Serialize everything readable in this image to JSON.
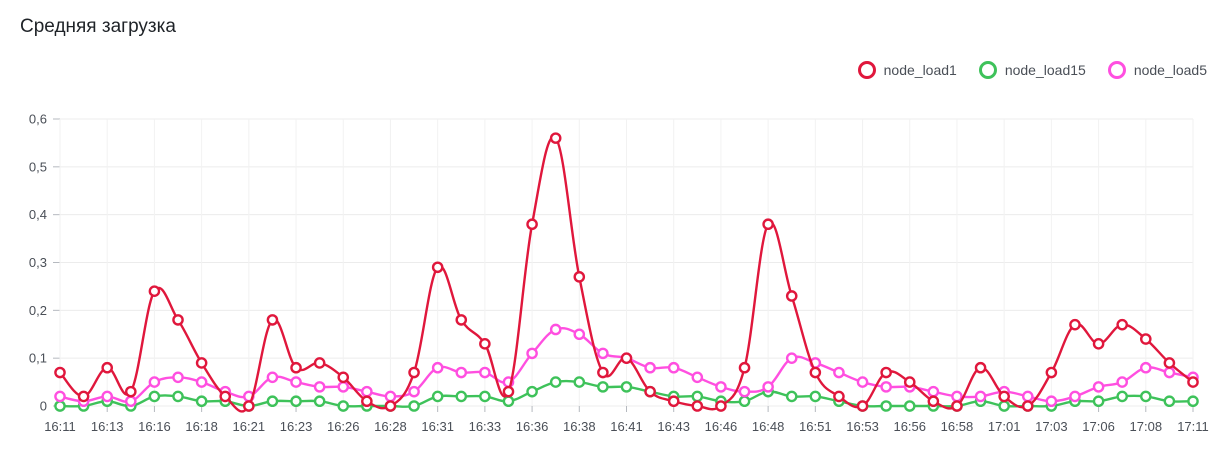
{
  "chart_data": {
    "type": "line",
    "title": "Средняя загрузка",
    "xlabel": "",
    "ylabel": "",
    "ylim": [
      0,
      0.6
    ],
    "yticks": [
      "0",
      "0,1",
      "0,2",
      "0,3",
      "0,4",
      "0,5",
      "0,6"
    ],
    "ytick_values": [
      0,
      0.1,
      0.2,
      0.3,
      0.4,
      0.5,
      0.6
    ],
    "x_tick_labels": [
      "16:11",
      "16:13",
      "16:16",
      "16:18",
      "16:21",
      "16:23",
      "16:26",
      "16:28",
      "16:31",
      "16:33",
      "16:36",
      "16:38",
      "16:41",
      "16:43",
      "16:46",
      "16:48",
      "16:51",
      "16:53",
      "16:56",
      "16:58",
      "17:01",
      "17:03",
      "17:06",
      "17:08",
      "17:11"
    ],
    "point_count": 49,
    "grid": true,
    "legend_position": "top-right",
    "series": [
      {
        "name": "node_load1",
        "color": "#e0173c",
        "values": [
          0.07,
          0.02,
          0.08,
          0.03,
          0.24,
          0.18,
          0.09,
          0.02,
          0.0,
          0.18,
          0.08,
          0.09,
          0.06,
          0.01,
          0.0,
          0.07,
          0.29,
          0.18,
          0.13,
          0.03,
          0.38,
          0.56,
          0.27,
          0.07,
          0.1,
          0.03,
          0.01,
          0.0,
          0.0,
          0.08,
          0.38,
          0.23,
          0.07,
          0.02,
          0.0,
          0.07,
          0.05,
          0.01,
          0.0,
          0.08,
          0.02,
          0.0,
          0.07,
          0.17,
          0.13,
          0.17,
          0.14,
          0.09,
          0.05
        ]
      },
      {
        "name": "node_load15",
        "color": "#3ec25a",
        "values": [
          0.0,
          0.0,
          0.01,
          0.0,
          0.02,
          0.02,
          0.01,
          0.01,
          0.0,
          0.01,
          0.01,
          0.01,
          0.0,
          0.0,
          0.0,
          0.0,
          0.02,
          0.02,
          0.02,
          0.01,
          0.03,
          0.05,
          0.05,
          0.04,
          0.04,
          0.03,
          0.02,
          0.02,
          0.01,
          0.01,
          0.03,
          0.02,
          0.02,
          0.01,
          0.0,
          0.0,
          0.0,
          0.0,
          0.0,
          0.01,
          0.0,
          0.0,
          0.0,
          0.01,
          0.01,
          0.02,
          0.02,
          0.01,
          0.01
        ]
      },
      {
        "name": "node_load5",
        "color": "#ff4fe0",
        "values": [
          0.02,
          0.01,
          0.02,
          0.01,
          0.05,
          0.06,
          0.05,
          0.03,
          0.02,
          0.06,
          0.05,
          0.04,
          0.04,
          0.03,
          0.02,
          0.03,
          0.08,
          0.07,
          0.07,
          0.05,
          0.11,
          0.16,
          0.15,
          0.11,
          0.1,
          0.08,
          0.08,
          0.06,
          0.04,
          0.03,
          0.04,
          0.1,
          0.09,
          0.07,
          0.05,
          0.04,
          0.04,
          0.03,
          0.02,
          0.02,
          0.03,
          0.02,
          0.01,
          0.02,
          0.04,
          0.05,
          0.08,
          0.07,
          0.06
        ]
      }
    ]
  }
}
